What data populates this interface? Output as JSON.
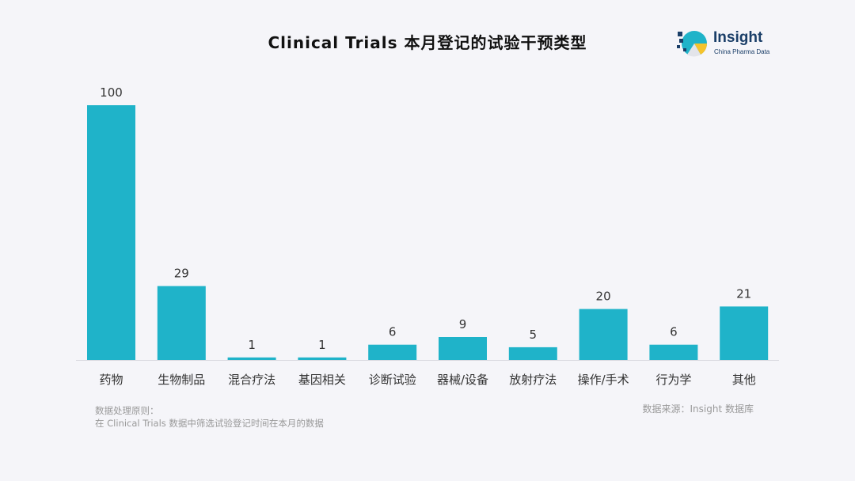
{
  "title": "Clinical Trials 本月登记的试验干预类型",
  "logo": {
    "name": "Insight",
    "subtitle": "China Pharma Data"
  },
  "chart_data": {
    "type": "bar",
    "categories": [
      "药物",
      "生物制品",
      "混合疗法",
      "基因相关",
      "诊断试验",
      "器械/设备",
      "放射疗法",
      "操作/手术",
      "行为学",
      "其他"
    ],
    "values": [
      100,
      29,
      1,
      1,
      6,
      9,
      5,
      20,
      6,
      21
    ],
    "ylim": [
      0,
      100
    ],
    "grid": false,
    "bar_color": "#1fb3c9",
    "data_labels": true
  },
  "notes": {
    "line1": "数据处理原则：",
    "line2": "在 Clinical Trials 数据中筛选试验登记时间在本月的数据"
  },
  "source": "数据来源：Insight 数据库",
  "colors": {
    "background": "#f5f5f9",
    "axis": "#d9d9df",
    "logo_navy": "#1a3e68",
    "logo_cyan": "#1fb3c9",
    "logo_yellow": "#f5c32c"
  }
}
